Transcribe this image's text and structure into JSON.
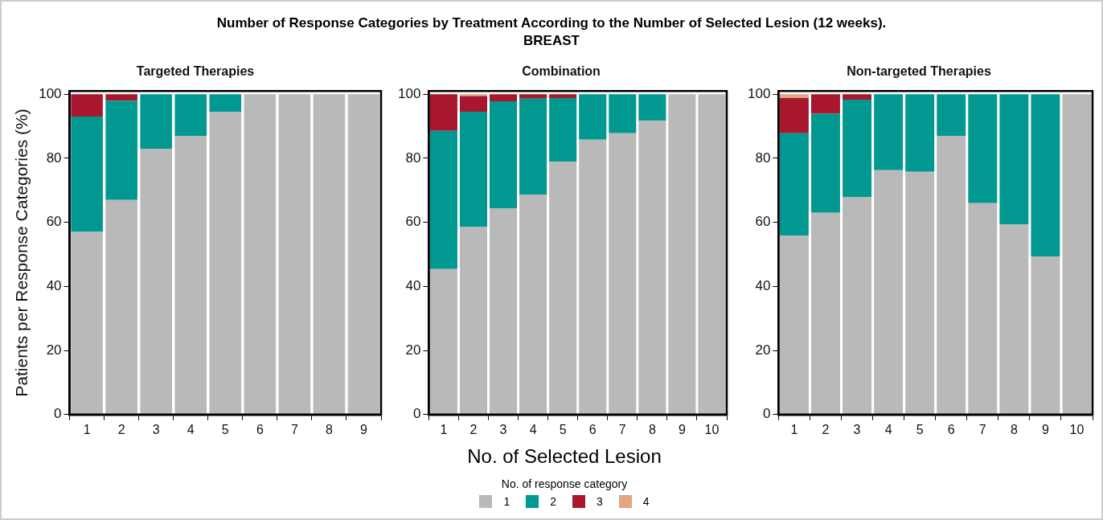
{
  "chart_data": [
    {
      "type": "bar",
      "title": "Targeted Therapies",
      "ylabel": "Patients per Response Categories (%)",
      "annotations": [
        "Number of Response Categories by Treatment According to the Number of Selected Lesion (12 weeks).",
        "BREAST"
      ],
      "stacked": true,
      "ylim": [
        0,
        101
      ],
      "yticks": [
        0,
        20,
        40,
        60,
        80,
        100
      ],
      "categories": [
        "1",
        "2",
        "3",
        "4",
        "5",
        "6",
        "7",
        "8",
        "9"
      ],
      "series": [
        {
          "color": "#b8b9b8",
          "values": [
            57,
            67,
            83,
            87,
            94.5,
            100,
            100,
            100,
            100
          ]
        },
        {
          "color": "#009891",
          "values": [
            36,
            31,
            17,
            13,
            5.5,
            0,
            0,
            0,
            0
          ]
        },
        {
          "color": "#a8172e",
          "values": [
            7,
            2,
            0,
            0,
            0,
            0,
            0,
            0,
            0
          ]
        },
        {
          "color": "#e2a57e",
          "values": [
            0,
            0,
            0,
            0,
            0,
            0,
            0,
            0,
            0
          ]
        }
      ]
    },
    {
      "type": "bar",
      "title": "Combination",
      "xlabel": "No. of Selected Lesion",
      "legend_title": "No. of response category",
      "legend": "bottom",
      "stacked": true,
      "ylim": [
        0,
        101
      ],
      "yticks": [
        0,
        20,
        40,
        60,
        80,
        100
      ],
      "categories": [
        "1",
        "2",
        "3",
        "4",
        "5",
        "6",
        "7",
        "8",
        "9",
        "10"
      ],
      "series": [
        {
          "name": "1",
          "color": "#b8b9b8",
          "values": [
            45.4,
            58.5,
            64.3,
            68.7,
            78.9,
            85.8,
            87.8,
            91.7,
            100,
            100
          ]
        },
        {
          "name": "2",
          "color": "#009891",
          "values": [
            43.2,
            36,
            33.5,
            29.9,
            19.9,
            14.2,
            12.2,
            8.3,
            0,
            0
          ]
        },
        {
          "name": "3",
          "color": "#a8172e",
          "values": [
            11.4,
            4.9,
            2.2,
            1.4,
            1.2,
            0,
            0,
            0,
            0,
            0
          ]
        },
        {
          "name": "4",
          "color": "#e2a57e",
          "values": [
            0,
            0.6,
            0,
            0,
            0,
            0,
            0,
            0,
            0,
            0
          ]
        }
      ]
    },
    {
      "type": "bar",
      "title": "Non-targeted Therapies",
      "stacked": true,
      "ylim": [
        0,
        101
      ],
      "yticks": [
        0,
        20,
        40,
        60,
        80,
        100
      ],
      "categories": [
        "1",
        "2",
        "3",
        "4",
        "5",
        "6",
        "7",
        "8",
        "9",
        "10"
      ],
      "series": [
        {
          "color": "#b8b9b8",
          "values": [
            55.8,
            63,
            67.8,
            76.3,
            75.8,
            87,
            66,
            59.4,
            49.4,
            100
          ]
        },
        {
          "color": "#009891",
          "values": [
            32,
            30.9,
            30.5,
            23.7,
            24.2,
            13,
            34,
            40.6,
            50.6,
            0
          ]
        },
        {
          "color": "#a8172e",
          "values": [
            11,
            6.1,
            1.7,
            0,
            0,
            0,
            0,
            0,
            0,
            0
          ]
        },
        {
          "color": "#e2a57e",
          "values": [
            1.2,
            0,
            0,
            0,
            0,
            0,
            0,
            0,
            0,
            0
          ]
        }
      ]
    }
  ]
}
